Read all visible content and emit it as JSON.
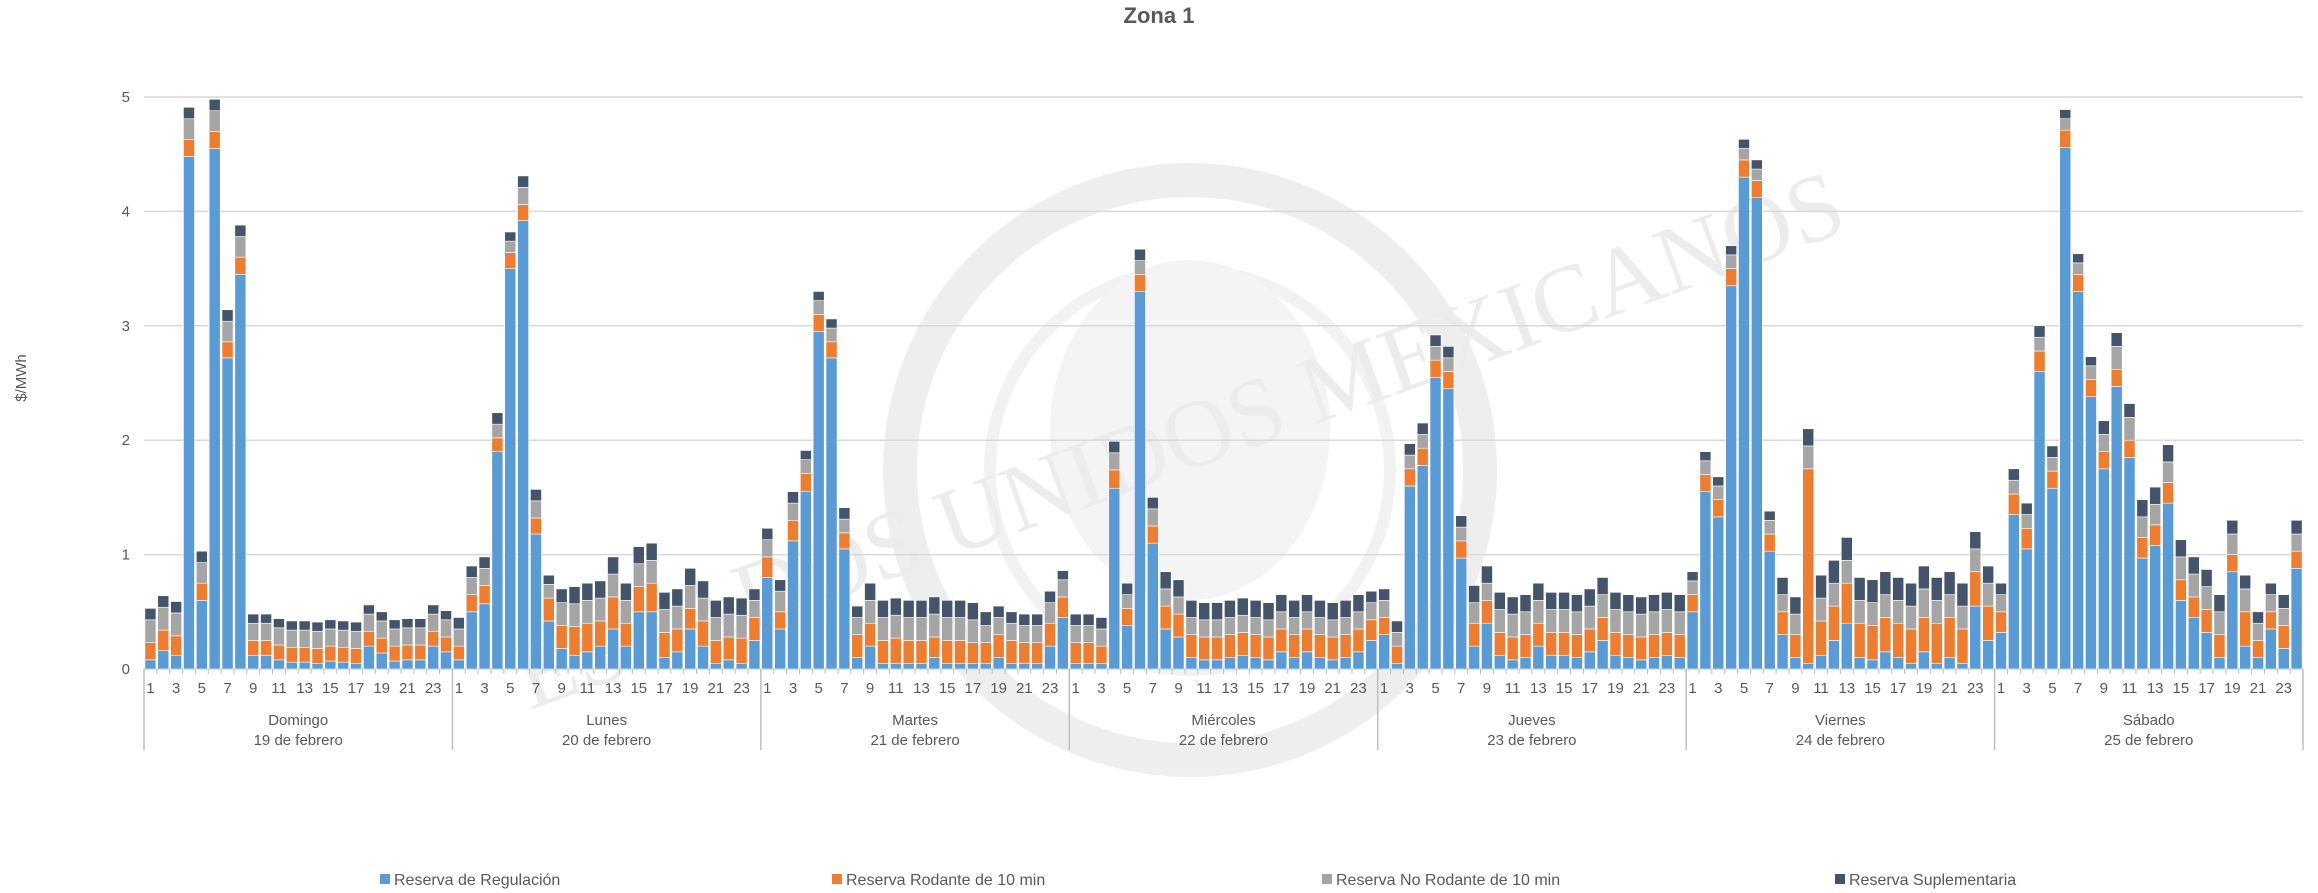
{
  "chart_data": {
    "type": "bar",
    "stacked": true,
    "title": "Zona 1",
    "ylabel": "$/MWh",
    "xlabel": "",
    "ylim": [
      0,
      5
    ],
    "yticks": [
      0,
      1,
      2,
      3,
      4,
      5
    ],
    "grid": true,
    "legend_position": "bottom",
    "watermark": "ESTADOS UNIDOS MEXICANOS",
    "hour_tick_labels": [
      "1",
      "3",
      "5",
      "7",
      "9",
      "11",
      "13",
      "15",
      "17",
      "19",
      "21",
      "23"
    ],
    "days": [
      {
        "name": "Domingo",
        "date": "19 de febrero"
      },
      {
        "name": "Lunes",
        "date": "20 de febrero"
      },
      {
        "name": "Martes",
        "date": "21 de febrero"
      },
      {
        "name": "Miércoles",
        "date": "22 de febrero"
      },
      {
        "name": "Jueves",
        "date": "23 de febrero"
      },
      {
        "name": "Viernes",
        "date": "24 de febrero"
      },
      {
        "name": "Sábado",
        "date": "25 de febrero"
      }
    ],
    "series": [
      {
        "name": "Reserva de Regulación",
        "color": "#5B9BD5",
        "values": [
          0.08,
          0.16,
          0.12,
          4.48,
          0.6,
          4.55,
          2.72,
          3.45,
          0.12,
          0.12,
          0.08,
          0.06,
          0.06,
          0.05,
          0.07,
          0.06,
          0.05,
          0.2,
          0.14,
          0.07,
          0.08,
          0.08,
          0.2,
          0.15,
          0.08,
          0.5,
          0.57,
          1.9,
          3.5,
          3.92,
          1.18,
          0.42,
          0.18,
          0.12,
          0.15,
          0.2,
          0.35,
          0.2,
          0.5,
          0.5,
          0.1,
          0.15,
          0.35,
          0.2,
          0.05,
          0.08,
          0.05,
          0.25,
          0.8,
          0.35,
          1.12,
          1.55,
          2.95,
          2.72,
          1.05,
          0.1,
          0.2,
          0.05,
          0.05,
          0.05,
          0.05,
          0.1,
          0.05,
          0.05,
          0.05,
          0.05,
          0.1,
          0.05,
          0.05,
          0.05,
          0.2,
          0.45,
          0.05,
          0.05,
          0.05,
          1.58,
          0.38,
          3.3,
          1.1,
          0.35,
          0.28,
          0.1,
          0.08,
          0.08,
          0.1,
          0.12,
          0.1,
          0.08,
          0.15,
          0.1,
          0.15,
          0.1,
          0.08,
          0.1,
          0.15,
          0.25,
          0.3,
          0.05,
          1.6,
          1.78,
          2.55,
          2.45,
          0.97,
          0.2,
          0.4,
          0.12,
          0.08,
          0.1,
          0.2,
          0.12,
          0.12,
          0.1,
          0.15,
          0.25,
          0.12,
          0.1,
          0.08,
          0.1,
          0.12,
          0.1,
          0.5,
          1.55,
          1.33,
          3.35,
          4.3,
          4.12,
          1.03,
          0.3,
          0.1,
          0.05,
          0.12,
          0.25,
          0.4,
          0.1,
          0.08,
          0.15,
          0.1,
          0.05,
          0.15,
          0.05,
          0.1,
          0.05,
          0.55,
          0.25,
          0.32,
          1.35,
          1.05,
          2.6,
          1.58,
          4.56,
          3.3,
          2.38,
          1.75,
          2.47,
          1.85,
          0.97,
          1.08,
          1.45,
          0.6,
          0.45,
          0.32,
          0.1,
          0.85,
          0.2,
          0.1,
          0.35,
          0.18,
          0.88
        ]
      },
      {
        "name": "Reserva Rodante de 10 min",
        "color": "#ED7D31",
        "values": [
          0.15,
          0.18,
          0.17,
          0.15,
          0.15,
          0.15,
          0.14,
          0.15,
          0.13,
          0.13,
          0.13,
          0.13,
          0.13,
          0.13,
          0.13,
          0.13,
          0.13,
          0.13,
          0.13,
          0.13,
          0.13,
          0.13,
          0.13,
          0.13,
          0.12,
          0.15,
          0.16,
          0.12,
          0.14,
          0.14,
          0.14,
          0.2,
          0.2,
          0.25,
          0.25,
          0.22,
          0.28,
          0.2,
          0.22,
          0.25,
          0.22,
          0.2,
          0.18,
          0.22,
          0.2,
          0.2,
          0.22,
          0.2,
          0.18,
          0.15,
          0.18,
          0.16,
          0.15,
          0.14,
          0.14,
          0.2,
          0.2,
          0.2,
          0.22,
          0.2,
          0.2,
          0.18,
          0.2,
          0.2,
          0.18,
          0.18,
          0.2,
          0.2,
          0.18,
          0.18,
          0.2,
          0.18,
          0.18,
          0.18,
          0.15,
          0.16,
          0.15,
          0.15,
          0.15,
          0.2,
          0.2,
          0.2,
          0.2,
          0.2,
          0.2,
          0.2,
          0.2,
          0.2,
          0.2,
          0.2,
          0.2,
          0.2,
          0.2,
          0.2,
          0.2,
          0.18,
          0.15,
          0.15,
          0.15,
          0.15,
          0.15,
          0.15,
          0.15,
          0.2,
          0.2,
          0.2,
          0.2,
          0.2,
          0.2,
          0.2,
          0.2,
          0.2,
          0.2,
          0.2,
          0.2,
          0.2,
          0.2,
          0.2,
          0.2,
          0.2,
          0.15,
          0.15,
          0.15,
          0.15,
          0.15,
          0.15,
          0.15,
          0.2,
          0.2,
          1.7,
          0.3,
          0.3,
          0.35,
          0.3,
          0.3,
          0.3,
          0.3,
          0.3,
          0.3,
          0.35,
          0.35,
          0.3,
          0.3,
          0.3,
          0.18,
          0.18,
          0.18,
          0.18,
          0.15,
          0.15,
          0.15,
          0.15,
          0.15,
          0.15,
          0.15,
          0.18,
          0.18,
          0.18,
          0.18,
          0.18,
          0.2,
          0.2,
          0.15,
          0.3,
          0.15,
          0.15,
          0.2,
          0.15
        ]
      },
      {
        "name": "Reserva No Rodante de 10 min",
        "color": "#A5A5A5",
        "values": [
          0.2,
          0.2,
          0.2,
          0.18,
          0.18,
          0.18,
          0.18,
          0.18,
          0.15,
          0.15,
          0.15,
          0.15,
          0.15,
          0.15,
          0.15,
          0.15,
          0.15,
          0.15,
          0.15,
          0.15,
          0.15,
          0.15,
          0.15,
          0.15,
          0.15,
          0.15,
          0.15,
          0.12,
          0.1,
          0.15,
          0.15,
          0.12,
          0.2,
          0.2,
          0.2,
          0.2,
          0.2,
          0.2,
          0.2,
          0.2,
          0.2,
          0.2,
          0.2,
          0.2,
          0.2,
          0.2,
          0.2,
          0.15,
          0.15,
          0.18,
          0.15,
          0.12,
          0.12,
          0.12,
          0.12,
          0.15,
          0.2,
          0.2,
          0.2,
          0.2,
          0.2,
          0.2,
          0.2,
          0.2,
          0.2,
          0.15,
          0.15,
          0.15,
          0.15,
          0.15,
          0.18,
          0.15,
          0.15,
          0.15,
          0.15,
          0.15,
          0.12,
          0.12,
          0.15,
          0.15,
          0.15,
          0.15,
          0.15,
          0.15,
          0.15,
          0.15,
          0.15,
          0.15,
          0.15,
          0.15,
          0.15,
          0.15,
          0.15,
          0.15,
          0.15,
          0.15,
          0.15,
          0.12,
          0.12,
          0.12,
          0.12,
          0.12,
          0.12,
          0.18,
          0.15,
          0.2,
          0.2,
          0.2,
          0.2,
          0.2,
          0.2,
          0.2,
          0.2,
          0.2,
          0.2,
          0.2,
          0.2,
          0.2,
          0.2,
          0.2,
          0.12,
          0.12,
          0.12,
          0.12,
          0.1,
          0.1,
          0.12,
          0.15,
          0.18,
          0.2,
          0.2,
          0.2,
          0.2,
          0.2,
          0.2,
          0.2,
          0.2,
          0.2,
          0.25,
          0.2,
          0.2,
          0.2,
          0.2,
          0.2,
          0.15,
          0.12,
          0.12,
          0.12,
          0.12,
          0.1,
          0.1,
          0.12,
          0.15,
          0.2,
          0.2,
          0.18,
          0.18,
          0.18,
          0.2,
          0.2,
          0.2,
          0.2,
          0.18,
          0.2,
          0.15,
          0.15,
          0.15,
          0.15
        ]
      },
      {
        "name": "Reserva Suplementaria",
        "color": "#44546A",
        "values": [
          0.1,
          0.1,
          0.1,
          0.1,
          0.1,
          0.1,
          0.1,
          0.1,
          0.08,
          0.08,
          0.08,
          0.08,
          0.08,
          0.08,
          0.08,
          0.08,
          0.08,
          0.08,
          0.08,
          0.08,
          0.08,
          0.08,
          0.08,
          0.08,
          0.1,
          0.1,
          0.1,
          0.1,
          0.08,
          0.1,
          0.1,
          0.08,
          0.12,
          0.15,
          0.15,
          0.15,
          0.15,
          0.15,
          0.15,
          0.15,
          0.15,
          0.15,
          0.15,
          0.15,
          0.15,
          0.15,
          0.15,
          0.1,
          0.1,
          0.1,
          0.1,
          0.08,
          0.08,
          0.08,
          0.1,
          0.1,
          0.15,
          0.15,
          0.15,
          0.15,
          0.15,
          0.15,
          0.15,
          0.15,
          0.15,
          0.12,
          0.1,
          0.1,
          0.1,
          0.1,
          0.1,
          0.08,
          0.1,
          0.1,
          0.1,
          0.1,
          0.1,
          0.1,
          0.1,
          0.15,
          0.15,
          0.15,
          0.15,
          0.15,
          0.15,
          0.15,
          0.15,
          0.15,
          0.15,
          0.15,
          0.15,
          0.15,
          0.15,
          0.15,
          0.15,
          0.1,
          0.1,
          0.1,
          0.1,
          0.1,
          0.1,
          0.1,
          0.1,
          0.15,
          0.15,
          0.15,
          0.15,
          0.15,
          0.15,
          0.15,
          0.15,
          0.15,
          0.15,
          0.15,
          0.15,
          0.15,
          0.15,
          0.15,
          0.15,
          0.15,
          0.08,
          0.08,
          0.08,
          0.08,
          0.08,
          0.08,
          0.08,
          0.15,
          0.15,
          0.15,
          0.2,
          0.2,
          0.2,
          0.2,
          0.2,
          0.2,
          0.2,
          0.2,
          0.2,
          0.2,
          0.2,
          0.2,
          0.15,
          0.15,
          0.1,
          0.1,
          0.1,
          0.1,
          0.1,
          0.08,
          0.08,
          0.08,
          0.12,
          0.12,
          0.12,
          0.15,
          0.15,
          0.15,
          0.15,
          0.15,
          0.15,
          0.15,
          0.12,
          0.12,
          0.1,
          0.1,
          0.12,
          0.12
        ]
      }
    ]
  }
}
